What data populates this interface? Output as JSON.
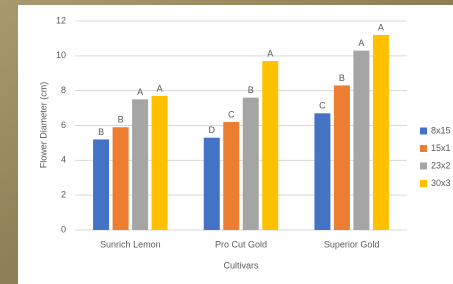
{
  "chart_data": {
    "type": "bar",
    "y_label": "Flower Diameter (cm)",
    "x_label": "Cultivars",
    "categories": [
      "Sunrich Lemon",
      "Pro Cut Gold",
      "Superior Gold"
    ],
    "series": [
      {
        "name": "8x15",
        "color": "#4472c4",
        "values": [
          5.2,
          5.3,
          6.7
        ],
        "letters": [
          "B",
          "D",
          "C"
        ]
      },
      {
        "name": "15x1",
        "color": "#ed7d31",
        "values": [
          5.9,
          6.2,
          8.3
        ],
        "letters": [
          "B",
          "C",
          "B"
        ]
      },
      {
        "name": "23x2",
        "color": "#a5a5a5",
        "values": [
          7.5,
          7.6,
          10.3
        ],
        "letters": [
          "A",
          "B",
          "A"
        ]
      },
      {
        "name": "30x3",
        "color": "#ffc000",
        "values": [
          7.7,
          9.7,
          11.2
        ],
        "letters": [
          "A",
          "A",
          "A"
        ]
      }
    ],
    "ylim": [
      0,
      12
    ],
    "yticks": [
      0,
      2,
      4,
      6,
      8,
      10,
      12
    ],
    "grid": true,
    "legend": "right"
  }
}
